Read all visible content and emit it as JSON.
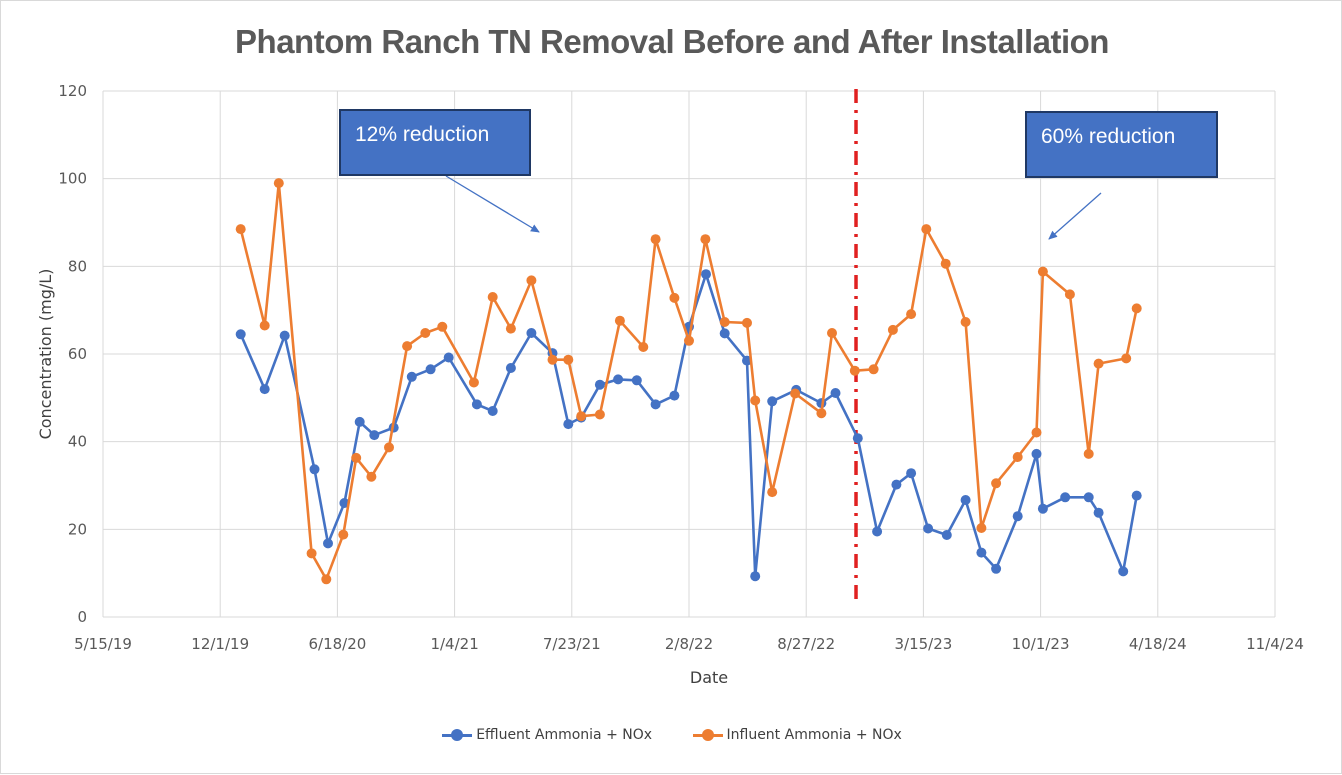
{
  "chart_data": {
    "type": "line",
    "title": "Phantom Ranch TN Removal Before and After Installation",
    "xlabel": "Date",
    "ylabel": "Concentration (mg/L)",
    "xlim": [
      "2019-05-15",
      "2024-11-04"
    ],
    "ylim": [
      0,
      120
    ],
    "x_ticks": [
      "5/15/19",
      "12/1/19",
      "6/18/20",
      "1/4/21",
      "7/23/21",
      "2/8/22",
      "8/27/22",
      "3/15/23",
      "10/1/23",
      "4/18/24",
      "11/4/24"
    ],
    "y_ticks": [
      "0",
      "20",
      "40",
      "60",
      "80",
      "100",
      "120"
    ],
    "grid": true,
    "legend_position": "bottom",
    "installation_date": "2022-11-20",
    "series": [
      {
        "name": "Effluent Ammonia + NOx",
        "color": "#4472c4",
        "points": [
          {
            "x": "2020-01-05",
            "y": 64.5
          },
          {
            "x": "2020-02-15",
            "y": 52
          },
          {
            "x": "2020-03-20",
            "y": 64.2
          },
          {
            "x": "2020-05-10",
            "y": 33.7
          },
          {
            "x": "2020-06-02",
            "y": 16.8
          },
          {
            "x": "2020-06-30",
            "y": 26
          },
          {
            "x": "2020-07-26",
            "y": 44.5
          },
          {
            "x": "2020-08-20",
            "y": 41.5
          },
          {
            "x": "2020-09-22",
            "y": 43.2
          },
          {
            "x": "2020-10-23",
            "y": 54.8
          },
          {
            "x": "2020-11-24",
            "y": 56.5
          },
          {
            "x": "2020-12-25",
            "y": 59.2
          },
          {
            "x": "2021-02-11",
            "y": 48.5
          },
          {
            "x": "2021-03-10",
            "y": 47
          },
          {
            "x": "2021-04-10",
            "y": 56.8
          },
          {
            "x": "2021-05-15",
            "y": 64.8
          },
          {
            "x": "2021-06-20",
            "y": 60.2
          },
          {
            "x": "2021-07-17",
            "y": 44
          },
          {
            "x": "2021-08-08",
            "y": 45.5
          },
          {
            "x": "2021-09-09",
            "y": 53
          },
          {
            "x": "2021-10-10",
            "y": 54.2
          },
          {
            "x": "2021-11-11",
            "y": 54
          },
          {
            "x": "2021-12-13",
            "y": 48.5
          },
          {
            "x": "2022-01-14",
            "y": 50.5
          },
          {
            "x": "2022-02-08",
            "y": 66.2
          },
          {
            "x": "2022-03-09",
            "y": 78.2
          },
          {
            "x": "2022-04-10",
            "y": 64.7
          },
          {
            "x": "2022-05-18",
            "y": 58.5
          },
          {
            "x": "2022-06-01",
            "y": 9.3
          },
          {
            "x": "2022-06-30",
            "y": 49.2
          },
          {
            "x": "2022-08-10",
            "y": 51.8
          },
          {
            "x": "2022-09-22",
            "y": 48.8
          },
          {
            "x": "2022-10-16",
            "y": 51.1
          },
          {
            "x": "2022-11-23",
            "y": 40.8
          },
          {
            "x": "2022-12-26",
            "y": 19.5
          },
          {
            "x": "2023-01-28",
            "y": 30.2
          },
          {
            "x": "2023-02-22",
            "y": 32.8
          },
          {
            "x": "2023-03-23",
            "y": 20.2
          },
          {
            "x": "2023-04-24",
            "y": 18.7
          },
          {
            "x": "2023-05-26",
            "y": 26.7
          },
          {
            "x": "2023-06-22",
            "y": 14.7
          },
          {
            "x": "2023-07-17",
            "y": 11
          },
          {
            "x": "2023-08-23",
            "y": 23
          },
          {
            "x": "2023-09-24",
            "y": 37.2
          },
          {
            "x": "2023-10-05",
            "y": 24.7
          },
          {
            "x": "2023-11-12",
            "y": 27.3
          },
          {
            "x": "2023-12-22",
            "y": 27.3
          },
          {
            "x": "2024-01-08",
            "y": 23.8
          },
          {
            "x": "2024-02-19",
            "y": 10.4
          },
          {
            "x": "2024-03-13",
            "y": 27.7
          }
        ]
      },
      {
        "name": "Influent Ammonia + NOx",
        "color": "#ed7d31",
        "points": [
          {
            "x": "2020-01-05",
            "y": 88.5
          },
          {
            "x": "2020-02-15",
            "y": 66.5
          },
          {
            "x": "2020-03-10",
            "y": 99
          },
          {
            "x": "2020-05-05",
            "y": 14.5
          },
          {
            "x": "2020-05-30",
            "y": 8.6
          },
          {
            "x": "2020-06-28",
            "y": 18.8
          },
          {
            "x": "2020-07-20",
            "y": 36.3
          },
          {
            "x": "2020-08-15",
            "y": 32
          },
          {
            "x": "2020-09-14",
            "y": 38.7
          },
          {
            "x": "2020-10-15",
            "y": 61.8
          },
          {
            "x": "2020-11-15",
            "y": 64.8
          },
          {
            "x": "2020-12-14",
            "y": 66.2
          },
          {
            "x": "2021-02-06",
            "y": 53.5
          },
          {
            "x": "2021-03-10",
            "y": 73
          },
          {
            "x": "2021-04-10",
            "y": 65.8
          },
          {
            "x": "2021-05-15",
            "y": 76.8
          },
          {
            "x": "2021-06-20",
            "y": 58.7
          },
          {
            "x": "2021-07-17",
            "y": 58.7
          },
          {
            "x": "2021-08-08",
            "y": 45.8
          },
          {
            "x": "2021-09-09",
            "y": 46.2
          },
          {
            "x": "2021-10-13",
            "y": 67.6
          },
          {
            "x": "2021-11-22",
            "y": 61.6
          },
          {
            "x": "2021-12-13",
            "y": 86.2
          },
          {
            "x": "2022-01-14",
            "y": 72.8
          },
          {
            "x": "2022-02-08",
            "y": 63
          },
          {
            "x": "2022-03-08",
            "y": 86.2
          },
          {
            "x": "2022-04-10",
            "y": 67.3
          },
          {
            "x": "2022-05-18",
            "y": 67.1
          },
          {
            "x": "2022-06-01",
            "y": 49.4
          },
          {
            "x": "2022-06-30",
            "y": 28.5
          },
          {
            "x": "2022-08-08",
            "y": 51
          },
          {
            "x": "2022-09-22",
            "y": 46.5
          },
          {
            "x": "2022-10-10",
            "y": 64.8
          },
          {
            "x": "2022-11-18",
            "y": 56.2
          },
          {
            "x": "2022-12-20",
            "y": 56.5
          },
          {
            "x": "2023-01-22",
            "y": 65.5
          },
          {
            "x": "2023-02-22",
            "y": 69.1
          },
          {
            "x": "2023-03-20",
            "y": 88.5
          },
          {
            "x": "2023-04-22",
            "y": 80.6
          },
          {
            "x": "2023-05-26",
            "y": 67.3
          },
          {
            "x": "2023-06-22",
            "y": 20.3
          },
          {
            "x": "2023-07-17",
            "y": 30.5
          },
          {
            "x": "2023-08-23",
            "y": 36.5
          },
          {
            "x": "2023-09-24",
            "y": 42.1
          },
          {
            "x": "2023-10-05",
            "y": 78.8
          },
          {
            "x": "2023-11-20",
            "y": 73.6
          },
          {
            "x": "2023-12-22",
            "y": 37.2
          },
          {
            "x": "2024-01-08",
            "y": 57.8
          },
          {
            "x": "2024-02-24",
            "y": 59
          },
          {
            "x": "2024-03-13",
            "y": 70.4
          }
        ]
      }
    ],
    "annotations": [
      {
        "text": "12% reduction"
      },
      {
        "text": "60% reduction"
      }
    ]
  }
}
